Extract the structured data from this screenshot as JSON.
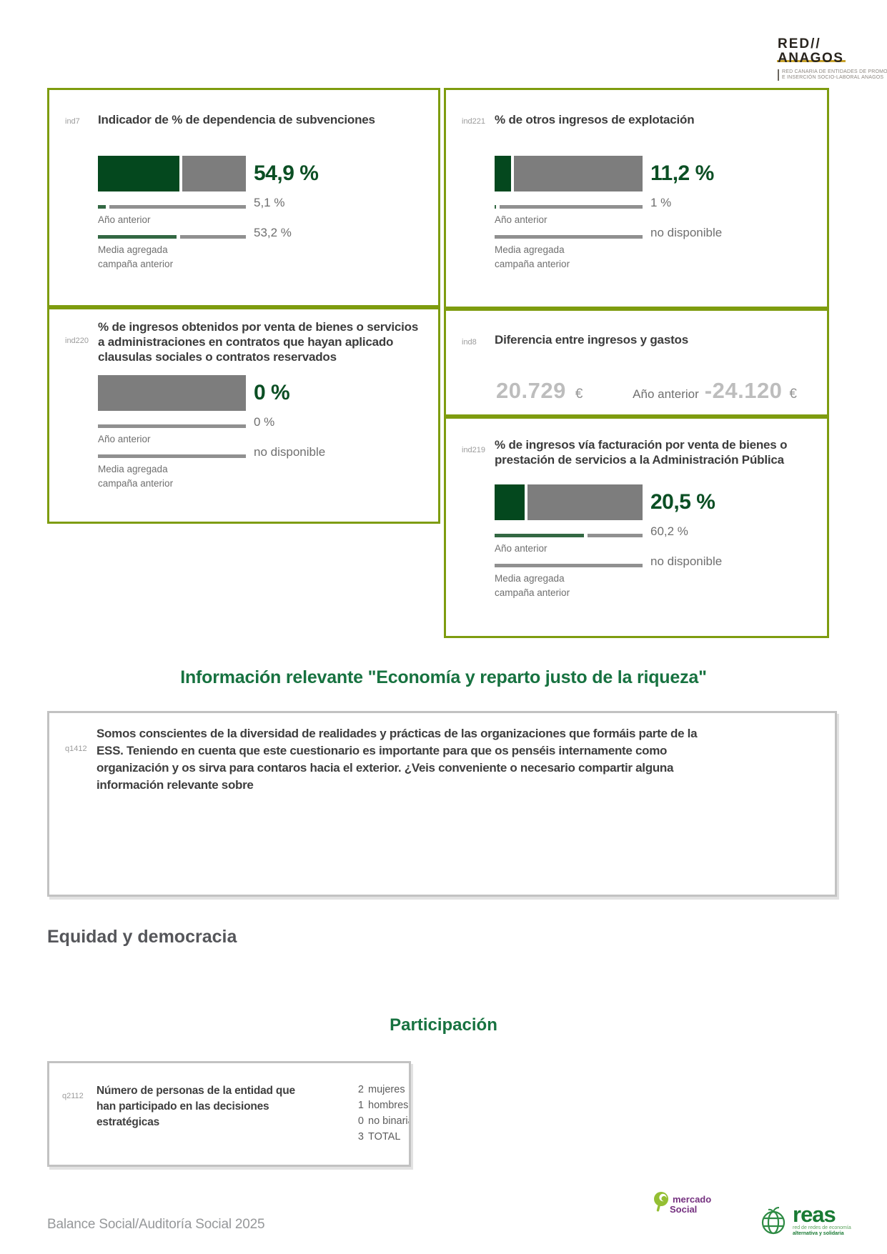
{
  "page": {
    "footer": "Balance Social/Auditoría Social 2025"
  },
  "colors": {
    "card_border": "#7e9c0f",
    "bar_green": "#04481e",
    "bar_gray": "#7d7d7d",
    "line_green": "#336843",
    "line_gray": "#909090",
    "value_green": "#0b4f24",
    "heading_green": "#177240",
    "muted_value": "#bdbdbd",
    "box_border": "#c2c2c2",
    "anagos_gold": "#c9a22b",
    "mercado_purple": "#74307f",
    "mercado_green": "#94bf33",
    "reas_green": "#187a33"
  },
  "header_logo": {
    "line1": "RED//",
    "line2": "ANAGOS",
    "tagline_line1": "RED CANARIA DE ENTIDADES DE PROMOCIÓN",
    "tagline_line2": "E INSERCIÓN SOCIO-LABORAL ANAGOS"
  },
  "cards": [
    {
      "id": "ind7",
      "title": "Indicador de % de dependencia de subvenciones",
      "value": "54,9 %",
      "prev_label": "Año anterior",
      "prev_value": "5,1 %",
      "media_label_1": "Media agregada",
      "media_label_2": "campaña anterior",
      "media_value": "53,2 %",
      "bar": {
        "main": 54.9,
        "prev": 5.1,
        "media": 53.2
      }
    },
    {
      "id": "ind221",
      "title": "% de otros ingresos de explotación",
      "value": "11,2 %",
      "prev_label": "Año anterior",
      "prev_value": "1 %",
      "media_label_1": "Media agregada",
      "media_label_2": "campaña anterior",
      "media_value": "no disponible",
      "bar": {
        "main": 11.2,
        "prev": 1,
        "media": 0
      }
    },
    {
      "id": "ind220",
      "title": "% de ingresos obtenidos por venta de bienes o servicios a administraciones en contratos que hayan aplicado clausulas sociales o contratos reservados",
      "value": "0 %",
      "prev_label": "Año anterior",
      "prev_value": "0 %",
      "media_label_1": "Media agregada",
      "media_label_2": "campaña anterior",
      "media_value": "no disponible",
      "bar": {
        "main": 0,
        "prev": 0,
        "media": 0
      }
    },
    {
      "id": "ind8",
      "title": "Diferencia entre ingresos y gastos",
      "value": "20.729",
      "currency": "€",
      "prev_label": "Año anterior",
      "prev_value": "-24.120",
      "prev_currency": "€"
    },
    {
      "id": "ind219",
      "title": "% de ingresos vía facturación por venta de bienes o prestación de servicios a la Administración Pública",
      "value": "20,5 %",
      "prev_label": "Año anterior",
      "prev_value": "60,2 %",
      "media_label_1": "Media agregada",
      "media_label_2": "campaña anterior",
      "media_value": "no disponible",
      "bar": {
        "main": 20.5,
        "prev": 60.2,
        "media": 0
      }
    }
  ],
  "sections": {
    "info_heading": "Información relevante \"Economía y reparto justo de la riqueza\"",
    "equidad_heading": "Equidad y democracia",
    "participacion_heading": "Participación"
  },
  "q1412": {
    "id": "q1412",
    "text": "Somos conscientes de la diversidad de realidades y prácticas de las organizaciones que formáis parte de la ESS. Teniendo en cuenta que este cuestionario es importante para que os penséis internamente como organización y os sirva para contaros hacia el exterior. ¿Veis conveniente o necesario compartir alguna información relevante sobre"
  },
  "q2112": {
    "id": "q2112",
    "title": "Número de personas de la entidad que han participado en las decisiones estratégicas",
    "values": [
      {
        "n": "2",
        "label": "mujeres"
      },
      {
        "n": "1",
        "label": "hombres"
      },
      {
        "n": "0",
        "label": "no binarias"
      },
      {
        "n": "3",
        "label": "TOTAL"
      }
    ]
  },
  "footer_logos": {
    "mercado": {
      "line1": "mercado",
      "line2": "Social"
    },
    "reas": {
      "name": "reas",
      "tagline_line1": "red de redes de economía",
      "tagline_line2": "alternativa y solidaria"
    }
  }
}
